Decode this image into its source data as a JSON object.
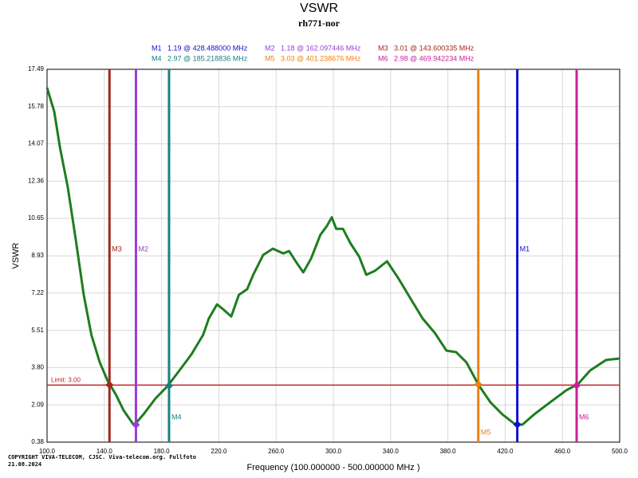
{
  "chart_data": {
    "type": "line",
    "title": "VSWR",
    "subtitle": "rh771-nor",
    "x_label": "Frequency (100.000000 - 500.000000 MHz )",
    "y_label": "VSWR",
    "xlim": [
      100,
      500
    ],
    "ylim": [
      0.38,
      17.49
    ],
    "xticks": [
      {
        "value": 100,
        "label": "100.0"
      },
      {
        "value": 140,
        "label": "140.0"
      },
      {
        "value": 180,
        "label": "180.0"
      },
      {
        "value": 220,
        "label": "220.0"
      },
      {
        "value": 260,
        "label": "260.0"
      },
      {
        "value": 300,
        "label": "300.0"
      },
      {
        "value": 340,
        "label": "340.0"
      },
      {
        "value": 380,
        "label": "380.0"
      },
      {
        "value": 420,
        "label": "420.0"
      },
      {
        "value": 460,
        "label": "460.0"
      },
      {
        "value": 500,
        "label": "500.0"
      }
    ],
    "yticks": [
      0.38,
      2.09,
      {
        "value": 3.8,
        "label": "3.80"
      },
      5.51,
      7.22,
      8.93,
      10.65,
      12.36,
      14.07,
      15.78,
      17.49
    ],
    "grid": true,
    "series": [
      {
        "name": "VSWR",
        "color": "#1e7d1e",
        "x": [
          100,
          105,
          109,
          114.5,
          120,
          125.6,
          131,
          136.8,
          142.3,
          148,
          153.5,
          160.7,
          167.4,
          175.8,
          184,
          192.5,
          200.8,
          209,
          213,
          218.7,
          223,
          228.7,
          234,
          239.8,
          244,
          251,
          257.7,
          265,
          269,
          274.5,
          279,
          284.4,
          291,
          295.5,
          298.9,
          302,
          306.7,
          312,
          318,
          323,
          329,
          337.5,
          345.7,
          354,
          362.4,
          370.9,
          379,
          385.8,
          393,
          401.4,
          409.7,
          418,
          426.5,
          432,
          440.4,
          451.5,
          462.7,
          471,
          479.4,
          490.5,
          500
        ],
        "values": [
          16.65,
          15.55,
          13.9,
          12.08,
          9.7,
          7.14,
          5.3,
          4.04,
          3.2,
          2.57,
          1.84,
          1.15,
          1.66,
          2.39,
          2.94,
          3.67,
          4.4,
          5.3,
          6.05,
          6.7,
          6.48,
          6.15,
          7.14,
          7.4,
          8.06,
          8.97,
          9.26,
          9.04,
          9.15,
          8.6,
          8.17,
          8.8,
          9.9,
          10.3,
          10.7,
          10.17,
          10.17,
          9.5,
          8.9,
          8.06,
          8.24,
          8.68,
          7.87,
          6.96,
          6.05,
          5.39,
          4.58,
          4.51,
          4.04,
          3.01,
          2.21,
          1.66,
          1.22,
          1.18,
          1.66,
          2.21,
          2.76,
          3.05,
          3.67,
          4.15,
          4.22
        ]
      }
    ],
    "limit": {
      "value": 3,
      "label": "Limit: 3.00",
      "color": "#cc2020"
    },
    "markers": [
      {
        "name": "M1",
        "label": "1.19 @ 428.488000 MHz",
        "x": 428.488,
        "y": 1.19,
        "color": "#1010cc"
      },
      {
        "name": "M2",
        "label": "1.18 @ 162.097446 MHz",
        "x": 162.097446,
        "y": 1.18,
        "color": "#9a3dd6"
      },
      {
        "name": "M3",
        "label": "3.01 @ 143.600335 MHz",
        "x": 143.600335,
        "y": 3.01,
        "color": "#a0281e"
      },
      {
        "name": "M4",
        "label": "2.97 @ 185.218836 MHz",
        "x": 185.218836,
        "y": 2.97,
        "color": "#1a8080"
      },
      {
        "name": "M5",
        "label": "3.03 @ 401.238676 MHz",
        "x": 401.238676,
        "y": 3.03,
        "color": "#f08010"
      },
      {
        "name": "M6",
        "label": "2.98 @ 469.942234 MHz",
        "x": 469.942234,
        "y": 2.98,
        "color": "#c8209a"
      }
    ],
    "footer": [
      "COPYRIGHT VIVA-TELECOM, CJSC. Viva-telecom.org. Fullfoto",
      "21.08.2024"
    ]
  }
}
